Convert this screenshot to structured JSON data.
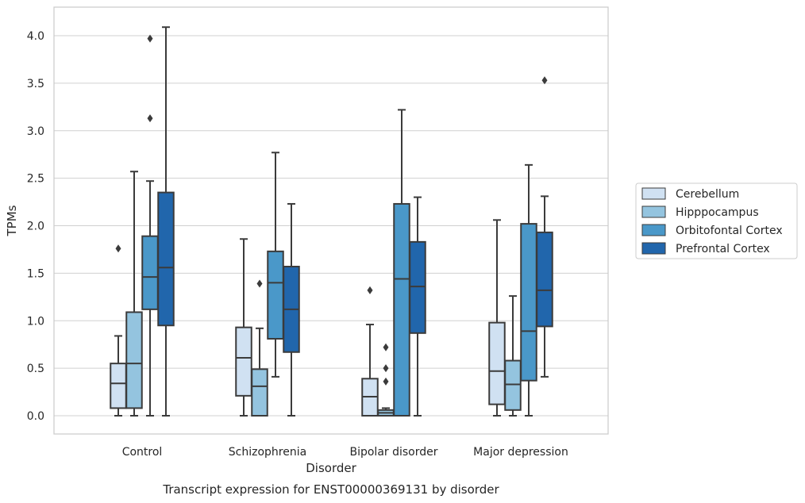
{
  "chart_data": {
    "type": "boxplot",
    "xlabel": "Disorder",
    "ylabel": "TPMs",
    "caption": "Transcript expression for ENST00000369131 by disorder",
    "ylim": [
      -0.2,
      4.3
    ],
    "yticks": [
      "0.0",
      "0.5",
      "1.0",
      "1.5",
      "2.0",
      "2.5",
      "3.0",
      "3.5",
      "4.0"
    ],
    "grid": "horizontal",
    "legend_position": "right",
    "categories": [
      "Control",
      "Schizophrenia",
      "Bipolar disorder",
      "Major depression"
    ],
    "series": [
      {
        "name": "Cerebellum",
        "color": "#d0e1f2",
        "boxes": [
          {
            "whislo": 0.0,
            "q1": 0.08,
            "med": 0.34,
            "q3": 0.55,
            "whishi": 0.84,
            "fliers": [
              1.76
            ]
          },
          {
            "whislo": 0.0,
            "q1": 0.21,
            "med": 0.61,
            "q3": 0.93,
            "whishi": 1.86,
            "fliers": []
          },
          {
            "whislo": 0.0,
            "q1": 0.0,
            "med": 0.2,
            "q3": 0.39,
            "whishi": 0.96,
            "fliers": [
              1.32
            ]
          },
          {
            "whislo": 0.0,
            "q1": 0.12,
            "med": 0.47,
            "q3": 0.98,
            "whishi": 2.06,
            "fliers": []
          }
        ]
      },
      {
        "name": "Hipppocampus",
        "color": "#94c4df",
        "boxes": [
          {
            "whislo": 0.0,
            "q1": 0.08,
            "med": 0.55,
            "q3": 1.09,
            "whishi": 2.57,
            "fliers": []
          },
          {
            "whislo": 0.0,
            "q1": 0.0,
            "med": 0.31,
            "q3": 0.49,
            "whishi": 0.92,
            "fliers": [
              1.39
            ]
          },
          {
            "whislo": 0.0,
            "q1": 0.0,
            "med": 0.03,
            "q3": 0.06,
            "whishi": 0.08,
            "fliers": [
              0.36,
              0.5,
              0.72
            ]
          },
          {
            "whislo": 0.0,
            "q1": 0.06,
            "med": 0.33,
            "q3": 0.58,
            "whishi": 1.26,
            "fliers": []
          }
        ]
      },
      {
        "name": "Orbitofontal Cortex",
        "color": "#4a98c9",
        "boxes": [
          {
            "whislo": 0.0,
            "q1": 1.12,
            "med": 1.46,
            "q3": 1.89,
            "whishi": 2.47,
            "fliers": [
              3.13,
              3.97
            ]
          },
          {
            "whislo": 0.41,
            "q1": 0.81,
            "med": 1.4,
            "q3": 1.73,
            "whishi": 2.77,
            "fliers": []
          },
          {
            "whislo": 0.0,
            "q1": 0.0,
            "med": 1.44,
            "q3": 2.23,
            "whishi": 3.22,
            "fliers": []
          },
          {
            "whislo": 0.0,
            "q1": 0.37,
            "med": 0.89,
            "q3": 2.02,
            "whishi": 2.64,
            "fliers": []
          }
        ]
      },
      {
        "name": "Prefrontal Cortex",
        "color": "#2166ac",
        "boxes": [
          {
            "whislo": 0.0,
            "q1": 0.95,
            "med": 1.56,
            "q3": 2.35,
            "whishi": 4.09,
            "fliers": []
          },
          {
            "whislo": 0.0,
            "q1": 0.67,
            "med": 1.12,
            "q3": 1.57,
            "whishi": 2.23,
            "fliers": []
          },
          {
            "whislo": 0.0,
            "q1": 0.87,
            "med": 1.36,
            "q3": 1.83,
            "whishi": 2.3,
            "fliers": []
          },
          {
            "whislo": 0.41,
            "q1": 0.94,
            "med": 1.32,
            "q3": 1.93,
            "whishi": 2.31,
            "fliers": [
              3.53
            ]
          }
        ]
      }
    ]
  }
}
